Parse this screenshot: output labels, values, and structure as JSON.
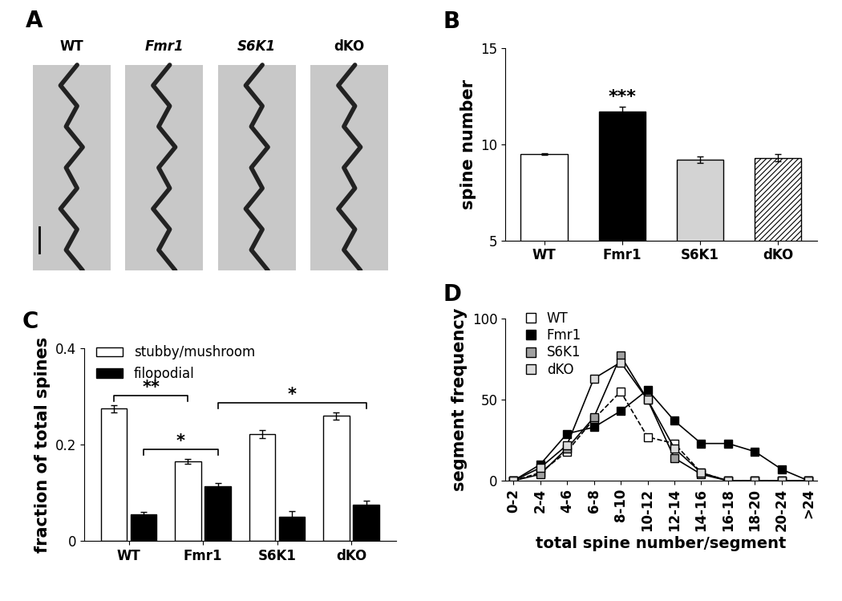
{
  "image_panel": {
    "title": "A",
    "captions": [
      "WT",
      "Fmr1",
      "S6K1",
      "dKO"
    ]
  },
  "chart_data": [
    {
      "type": "bar",
      "title": "B",
      "categories": [
        "WT",
        "Fmr1",
        "S6K1",
        "dKO"
      ],
      "values": [
        9.5,
        11.7,
        9.2,
        9.3
      ],
      "errors": [
        0.05,
        0.25,
        0.15,
        0.2
      ],
      "colors": [
        "#ffffff",
        "#000000",
        "#d3d3d3",
        "#ffffff"
      ],
      "ylabel": "spine number",
      "ylim": [
        5,
        15
      ],
      "yticks": [
        5,
        10,
        15
      ],
      "annotations": [
        {
          "text": "***",
          "category": "Fmr1"
        }
      ]
    },
    {
      "type": "bar",
      "title": "C",
      "categories": [
        "WT",
        "Fmr1",
        "S6K1",
        "dKO"
      ],
      "series": [
        {
          "name": "stubby/mushroom",
          "color": "#ffffff",
          "values": [
            0.275,
            0.165,
            0.222,
            0.26
          ],
          "errors": [
            0.008,
            0.005,
            0.009,
            0.008
          ]
        },
        {
          "name": "filopodial",
          "color": "#000000",
          "values": [
            0.055,
            0.113,
            0.05,
            0.075
          ],
          "errors": [
            0.005,
            0.007,
            0.012,
            0.008
          ]
        }
      ],
      "ylabel": "fraction of total spines",
      "ylim": [
        0,
        0.4
      ],
      "yticks": [
        0,
        0.2,
        0.4
      ],
      "legend": "upper left",
      "annotations": [
        {
          "text": "**",
          "from": {
            "category": "WT",
            "series": "stubby/mushroom"
          },
          "to": {
            "category": "Fmr1",
            "series": "stubby/mushroom"
          }
        },
        {
          "text": "*",
          "from": {
            "category": "WT",
            "series": "filopodial"
          },
          "to": {
            "category": "Fmr1",
            "series": "filopodial"
          }
        },
        {
          "text": "*",
          "from": {
            "category": "Fmr1",
            "series": "filopodial"
          },
          "to": {
            "category": "dKO",
            "series": "filopodial"
          }
        }
      ]
    },
    {
      "type": "line",
      "title": "D",
      "categories": [
        "0-2",
        "2-4",
        "4-6",
        "6-8",
        "8-10",
        "10-12",
        "12-14",
        "14-16",
        "16-18",
        "18-20",
        "20-24",
        ">24"
      ],
      "series": [
        {
          "name": "WT",
          "color": "#ffffff",
          "marker": "square",
          "line_style": "dashed",
          "values": [
            0,
            5,
            18,
            38,
            55,
            27,
            23,
            5,
            0,
            0,
            0,
            0
          ]
        },
        {
          "name": "Fmr1",
          "color": "#000000",
          "marker": "square",
          "line_style": "solid",
          "values": [
            0,
            10,
            29,
            33,
            43,
            56,
            37,
            23,
            23,
            18,
            7,
            0
          ]
        },
        {
          "name": "S6K1",
          "color": "#a0a0a0",
          "marker": "square",
          "line_style": "solid",
          "values": [
            0,
            4,
            20,
            39,
            77,
            50,
            14,
            4,
            0,
            0,
            0,
            0
          ]
        },
        {
          "name": "dKO",
          "color": "#dcdcdc",
          "marker": "square",
          "line_style": "solid",
          "values": [
            0,
            8,
            22,
            63,
            73,
            50,
            20,
            5,
            0,
            0,
            0,
            0
          ]
        }
      ],
      "xlabel": "total spine number/segment",
      "ylabel": "segment frequency",
      "ylim": [
        0,
        100
      ],
      "yticks": [
        0,
        50,
        100
      ],
      "legend": "upper left"
    }
  ]
}
